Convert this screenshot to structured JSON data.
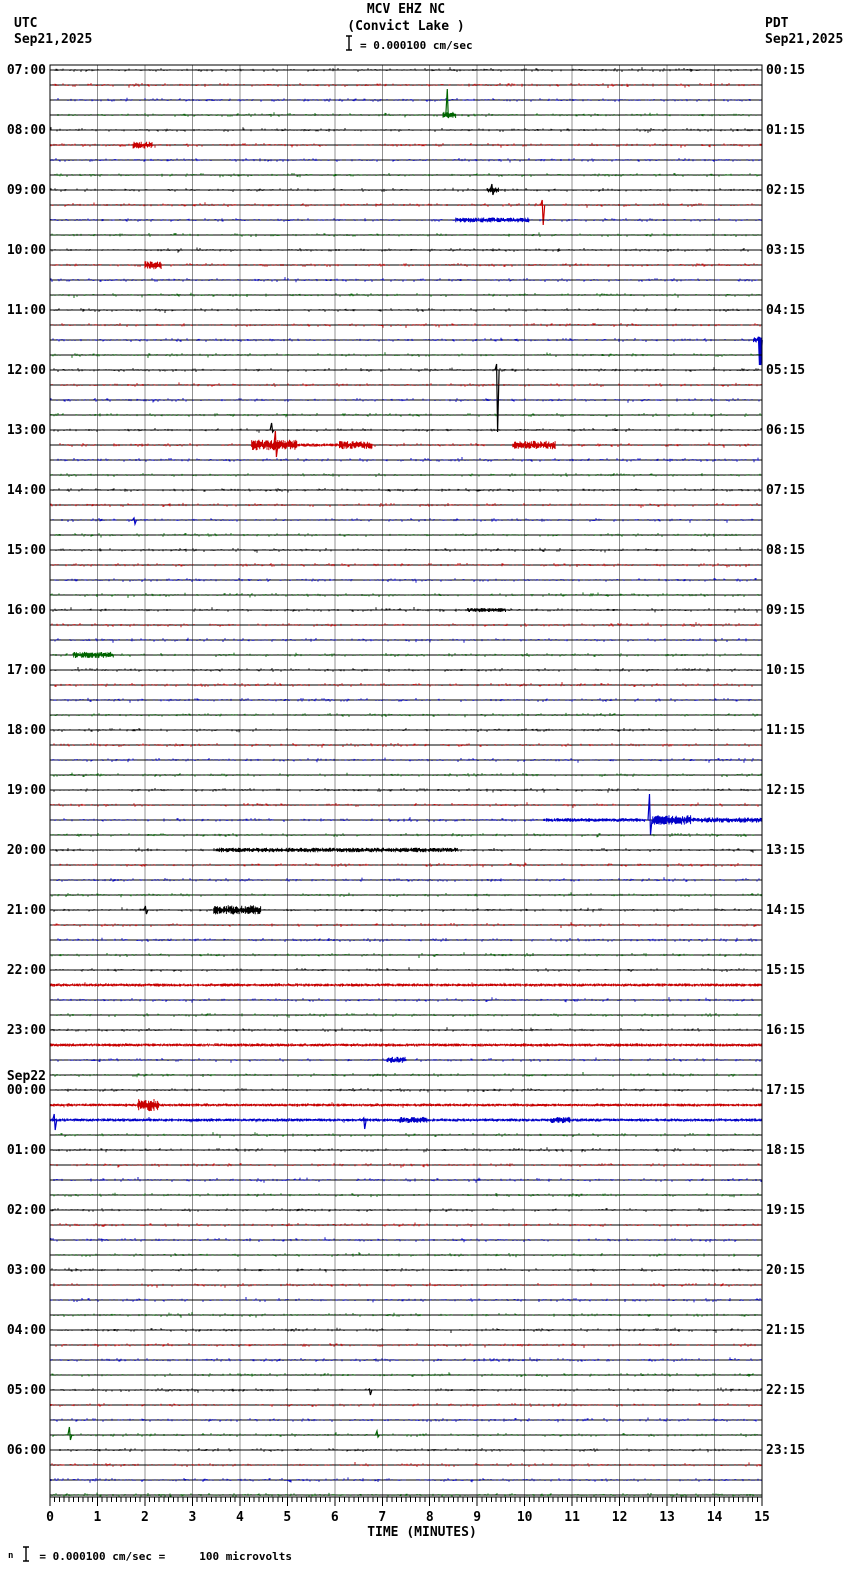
{
  "header": {
    "title": "MCV EHZ NC",
    "subtitle": "(Convict Lake )",
    "scale_label": "= 0.000100 cm/sec",
    "left_tz": "UTC",
    "left_date": "Sep21,2025",
    "right_tz": "PDT",
    "right_date": "Sep21,2025"
  },
  "footer": {
    "prefix": "n",
    "scale_equation": "= 0.000100 cm/sec =",
    "microvolts": "100 microvolts"
  },
  "axis": {
    "label": "TIME (MINUTES)",
    "min": 0,
    "max": 15,
    "tick_labels": [
      "0",
      "1",
      "2",
      "3",
      "4",
      "5",
      "6",
      "7",
      "8",
      "9",
      "10",
      "11",
      "12",
      "13",
      "14",
      "15"
    ],
    "minor_ticks_per_minute": 10
  },
  "colors": {
    "black": "#000000",
    "red": "#c80000",
    "blue": "#0000c8",
    "green": "#006400",
    "grid": "#909090",
    "border": "#000000",
    "background": "#ffffff"
  },
  "chart_data": {
    "type": "line",
    "subtype": "helicorder-seismogram",
    "title": "MCV EHZ NC (Convict Lake )",
    "xlabel": "TIME (MINUTES)",
    "x_range": [
      0,
      15
    ],
    "minutes_per_line": 15,
    "lines_per_hour": 4,
    "num_rows": 96,
    "start_utc": "Sep21,2025 07:00",
    "end_utc": "Sep22,2025 07:00",
    "trace_color_cycle": [
      "black",
      "red",
      "blue",
      "green"
    ],
    "left_labels": [
      {
        "label": "07:00"
      },
      {
        "label": "08:00"
      },
      {
        "label": "09:00"
      },
      {
        "label": "10:00"
      },
      {
        "label": "11:00"
      },
      {
        "label": "12:00"
      },
      {
        "label": "13:00"
      },
      {
        "label": "14:00"
      },
      {
        "label": "15:00"
      },
      {
        "label": "16:00"
      },
      {
        "label": "17:00"
      },
      {
        "label": "18:00"
      },
      {
        "label": "19:00"
      },
      {
        "label": "20:00"
      },
      {
        "label": "21:00"
      },
      {
        "label": "22:00"
      },
      {
        "label": "23:00"
      },
      {
        "prefix": "Sep22",
        "label": "00:00"
      },
      {
        "label": "01:00"
      },
      {
        "label": "02:00"
      },
      {
        "label": "03:00"
      },
      {
        "label": "04:00"
      },
      {
        "label": "05:00"
      },
      {
        "label": "06:00"
      }
    ],
    "right_labels": [
      {
        "label": "00:15"
      },
      {
        "label": "01:15"
      },
      {
        "label": "02:15"
      },
      {
        "label": "03:15"
      },
      {
        "label": "04:15"
      },
      {
        "label": "05:15"
      },
      {
        "label": "06:15"
      },
      {
        "label": "07:15"
      },
      {
        "label": "08:15"
      },
      {
        "label": "09:15"
      },
      {
        "label": "10:15"
      },
      {
        "label": "11:15"
      },
      {
        "label": "12:15"
      },
      {
        "label": "13:15"
      },
      {
        "label": "14:15"
      },
      {
        "label": "15:15"
      },
      {
        "label": "16:15"
      },
      {
        "label": "17:15"
      },
      {
        "label": "18:15"
      },
      {
        "label": "19:15"
      },
      {
        "label": "20:15"
      },
      {
        "label": "21:15"
      },
      {
        "label": "22:15"
      },
      {
        "label": "23:15"
      }
    ],
    "noise_base_amp": 1.0,
    "events": [
      {
        "row": 3,
        "type": "spike",
        "m": 8.38,
        "up": 26,
        "down": 3
      },
      {
        "row": 3,
        "type": "burst",
        "m0": 8.28,
        "m1": 8.56,
        "amp": 3
      },
      {
        "row": 5,
        "type": "burst",
        "m0": 1.75,
        "m1": 2.15,
        "amp": 3.5
      },
      {
        "row": 8,
        "type": "spike",
        "m": 9.32,
        "up": 6,
        "down": 5
      },
      {
        "row": 8,
        "type": "burst",
        "m0": 9.22,
        "m1": 9.45,
        "amp": 2.5
      },
      {
        "row": 9,
        "type": "spike",
        "m": 10.38,
        "up": 5,
        "down": 20
      },
      {
        "row": 10,
        "type": "burst",
        "m0": 8.55,
        "m1": 10.1,
        "amp": 2.4
      },
      {
        "row": 13,
        "type": "burst",
        "m0": 2.0,
        "m1": 2.35,
        "amp": 4
      },
      {
        "row": 18,
        "type": "burst",
        "m0": 14.82,
        "m1": 15,
        "amp": 2.5
      },
      {
        "row": 18,
        "type": "spike",
        "m": 14.95,
        "up": 3,
        "down": 25,
        "wide": true
      },
      {
        "row": 20,
        "type": "spike",
        "m": 9.42,
        "up": 6,
        "down": 62
      },
      {
        "row": 24,
        "type": "spike",
        "m": 4.68,
        "up": 7,
        "down": 2
      },
      {
        "row": 25,
        "type": "burst",
        "m0": 4.25,
        "m1": 5.2,
        "amp": 5
      },
      {
        "row": 25,
        "type": "spike",
        "m": 4.76,
        "up": 14,
        "down": 12
      },
      {
        "row": 25,
        "type": "burst",
        "m0": 5.2,
        "m1": 6.1,
        "amp": 1.5
      },
      {
        "row": 25,
        "type": "burst",
        "m0": 6.1,
        "m1": 6.8,
        "amp": 4
      },
      {
        "row": 25,
        "type": "burst",
        "m0": 9.75,
        "m1": 10.65,
        "amp": 4
      },
      {
        "row": 30,
        "type": "spike",
        "m": 1.78,
        "up": 2,
        "down": 4
      },
      {
        "row": 36,
        "type": "burst",
        "m0": 8.8,
        "m1": 9.6,
        "amp": 2
      },
      {
        "row": 39,
        "type": "burst",
        "m0": 0.5,
        "m1": 1.35,
        "amp": 3
      },
      {
        "row": 50,
        "type": "burst",
        "m0": 10.4,
        "m1": 12.55,
        "amp": 1.7
      },
      {
        "row": 50,
        "type": "spike",
        "m": 12.64,
        "up": 26,
        "down": 15
      },
      {
        "row": 50,
        "type": "burst",
        "m0": 12.7,
        "m1": 13.5,
        "amp": 4.5
      },
      {
        "row": 50,
        "type": "burst",
        "m0": 13.5,
        "m1": 15,
        "amp": 2.5
      },
      {
        "row": 52,
        "type": "burst",
        "m0": 3.5,
        "m1": 8.6,
        "amp": 2.2
      },
      {
        "row": 56,
        "type": "spike",
        "m": 2.02,
        "up": 4,
        "down": 4
      },
      {
        "row": 56,
        "type": "burst",
        "m0": 3.45,
        "m1": 4.45,
        "amp": 4.5
      },
      {
        "row": 61,
        "type": "burst",
        "m0": 0,
        "m1": 15,
        "amp": 1.5
      },
      {
        "row": 65,
        "type": "burst",
        "m0": 0,
        "m1": 15,
        "amp": 1.5
      },
      {
        "row": 66,
        "type": "burst",
        "m0": 7.1,
        "m1": 7.5,
        "amp": 3
      },
      {
        "row": 69,
        "type": "burst",
        "m0": 0,
        "m1": 15,
        "amp": 1.4
      },
      {
        "row": 69,
        "type": "burst",
        "m0": 1.85,
        "m1": 2.3,
        "amp": 6
      },
      {
        "row": 70,
        "type": "burst",
        "m0": 0,
        "m1": 15,
        "amp": 1.5
      },
      {
        "row": 70,
        "type": "spike",
        "m": 0.1,
        "up": 6,
        "down": 10
      },
      {
        "row": 70,
        "type": "spike",
        "m": 6.62,
        "up": 2,
        "down": 9
      },
      {
        "row": 70,
        "type": "burst",
        "m0": 7.35,
        "m1": 7.95,
        "amp": 3
      },
      {
        "row": 70,
        "type": "burst",
        "m0": 10.55,
        "m1": 10.95,
        "amp": 3
      },
      {
        "row": 88,
        "type": "spike",
        "m": 6.74,
        "up": 1,
        "down": 5
      },
      {
        "row": 91,
        "type": "spike",
        "m": 0.42,
        "up": 8,
        "down": 5
      },
      {
        "row": 91,
        "type": "spike",
        "m": 6.9,
        "up": 4,
        "down": 2
      }
    ]
  }
}
